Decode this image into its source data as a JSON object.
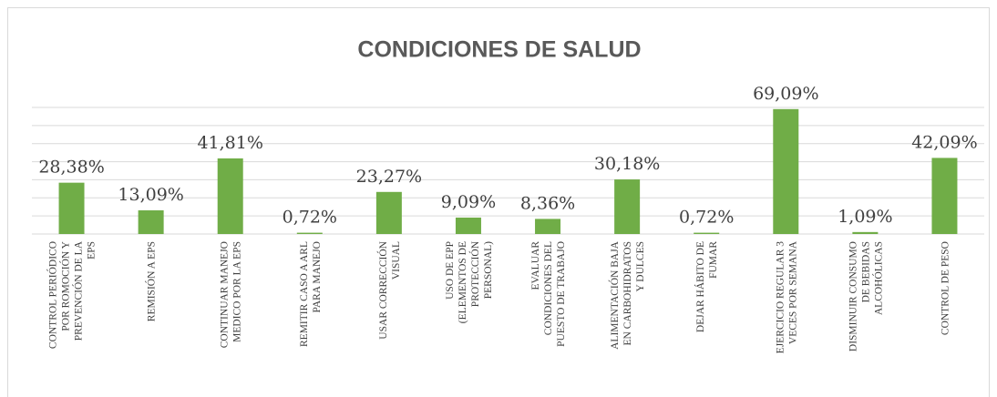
{
  "chart_data": {
    "type": "bar",
    "title": "CONDICIONES DE SALUD",
    "categories": [
      "CONTROL PERIÓDICO\nPOR ROMOCIÓN Y\nPREVENCIÓN DE LA\nEPS",
      "REMISIÓN A EPS",
      "CONTINUAR MANEJO\nMEDICO POR LA EPS",
      "REMITIR CASO A ARL\nPARA MANEJO",
      "USAR CORRECCIÓN\nVISUAL",
      "USO DE EPP\n(ELEMENTOS DE\nPROTECCIÓN\nPERSONAL)",
      "EVALUAR\nCONDICIONES DEL\nPUESTO DE TRABAJO",
      "ALIMENTACIÓN BAJA\nEN CARBOHIDRATOS\nY DULCES",
      "DEJAR HÁBITO DE\nFUMAR",
      "EJERCICIO REGULAR 3\nVECES POR SEMANA",
      "DISMINUIR CONSUMO\nDE BEBIDAS\nALCOHÓLICAS",
      "CONTROL DE PESO"
    ],
    "values": [
      28.38,
      13.09,
      41.81,
      0.72,
      23.27,
      9.09,
      8.36,
      30.18,
      0.72,
      69.09,
      1.09,
      42.09
    ],
    "value_labels": [
      "28,38%",
      "13,09%",
      "41,81%",
      "0,72%",
      "23,27%",
      "9,09%",
      "8,36%",
      "30,18%",
      "0,72%",
      "69,09%",
      "1,09%",
      "42,09%"
    ],
    "color": "#70ad47",
    "ylim": [
      0,
      70
    ],
    "yticks": [
      0,
      10,
      20,
      30,
      40,
      50,
      60,
      70
    ],
    "grid": true,
    "show_tick_labels": false
  }
}
